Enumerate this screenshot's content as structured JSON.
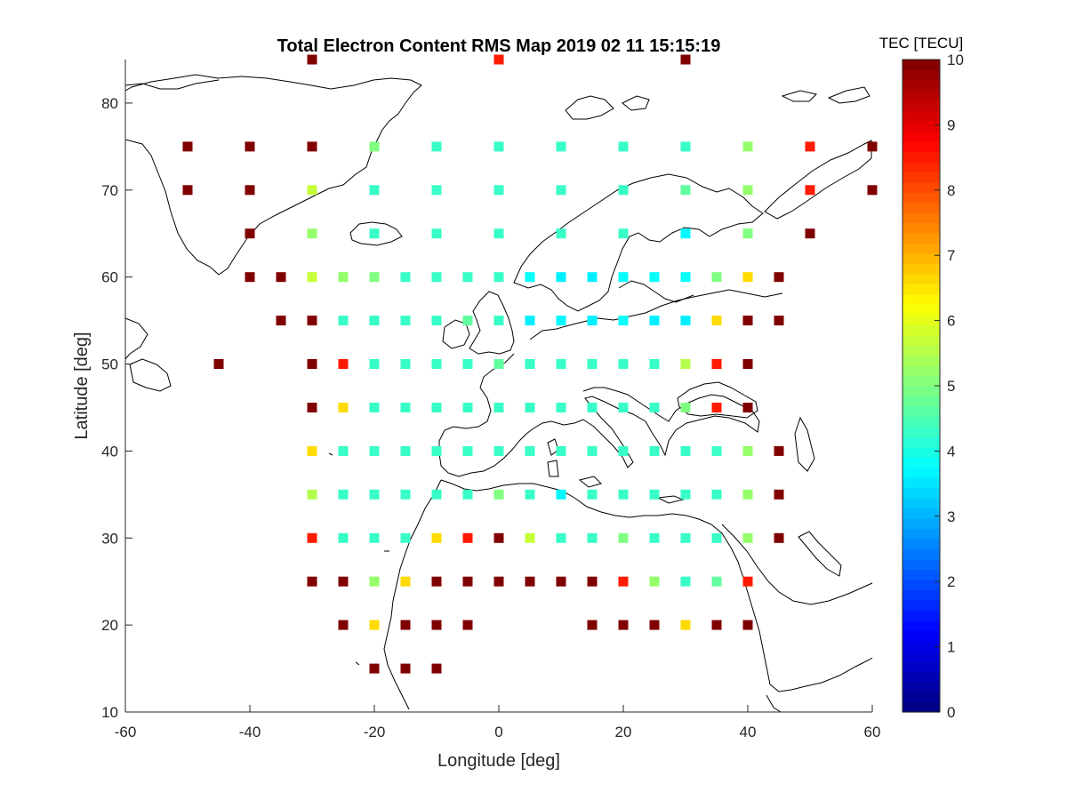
{
  "chart_data": {
    "type": "heatmap",
    "title": "Total Electron Content RMS Map 2019 02 11 15:15:19",
    "xlabel": "Longitude [deg]",
    "ylabel": "Latitude [deg]",
    "xlim": [
      -60,
      60
    ],
    "ylim": [
      10,
      85
    ],
    "xticks": [
      "-60",
      "-40",
      "-20",
      "0",
      "20",
      "40",
      "60"
    ],
    "yticks": [
      "10",
      "20",
      "30",
      "40",
      "50",
      "60",
      "70",
      "80"
    ],
    "colorbar": {
      "title": "TEC [TECU]",
      "range": [
        0,
        10
      ],
      "ticks": [
        "0",
        "1",
        "2",
        "3",
        "4",
        "5",
        "6",
        "7",
        "8",
        "9",
        "10"
      ],
      "colormap": "jet"
    },
    "marker": "square",
    "grid": false,
    "background_map": "coastlines",
    "points": [
      {
        "lon": -30,
        "lat": 85,
        "value": 10
      },
      {
        "lon": 0,
        "lat": 85,
        "value": 8.5
      },
      {
        "lon": 30,
        "lat": 85,
        "value": 10
      },
      {
        "lon": -50,
        "lat": 75,
        "value": 10
      },
      {
        "lon": -40,
        "lat": 75,
        "value": 10
      },
      {
        "lon": -30,
        "lat": 75,
        "value": 10
      },
      {
        "lon": -20,
        "lat": 75,
        "value": 5
      },
      {
        "lon": -10,
        "lat": 75,
        "value": 4.3
      },
      {
        "lon": 0,
        "lat": 75,
        "value": 4.3
      },
      {
        "lon": 10,
        "lat": 75,
        "value": 4.3
      },
      {
        "lon": 20,
        "lat": 75,
        "value": 4.3
      },
      {
        "lon": 30,
        "lat": 75,
        "value": 4.3
      },
      {
        "lon": 40,
        "lat": 75,
        "value": 5.2
      },
      {
        "lon": 50,
        "lat": 75,
        "value": 8.5
      },
      {
        "lon": 60,
        "lat": 75,
        "value": 10
      },
      {
        "lon": -50,
        "lat": 70,
        "value": 10
      },
      {
        "lon": -40,
        "lat": 70,
        "value": 10
      },
      {
        "lon": -30,
        "lat": 70,
        "value": 5.7
      },
      {
        "lon": -20,
        "lat": 70,
        "value": 4.3
      },
      {
        "lon": -10,
        "lat": 70,
        "value": 4.3
      },
      {
        "lon": 0,
        "lat": 70,
        "value": 4.3
      },
      {
        "lon": 10,
        "lat": 70,
        "value": 4.3
      },
      {
        "lon": 20,
        "lat": 70,
        "value": 4.3
      },
      {
        "lon": 30,
        "lat": 70,
        "value": 4.7
      },
      {
        "lon": 40,
        "lat": 70,
        "value": 5.2
      },
      {
        "lon": 50,
        "lat": 70,
        "value": 8.5
      },
      {
        "lon": 60,
        "lat": 70,
        "value": 10
      },
      {
        "lon": -40,
        "lat": 65,
        "value": 10
      },
      {
        "lon": -30,
        "lat": 65,
        "value": 5.2
      },
      {
        "lon": -20,
        "lat": 65,
        "value": 4.3
      },
      {
        "lon": -10,
        "lat": 65,
        "value": 4.3
      },
      {
        "lon": 0,
        "lat": 65,
        "value": 4.3
      },
      {
        "lon": 10,
        "lat": 65,
        "value": 4.3
      },
      {
        "lon": 20,
        "lat": 65,
        "value": 4.3
      },
      {
        "lon": 30,
        "lat": 65,
        "value": 3.7
      },
      {
        "lon": 40,
        "lat": 65,
        "value": 5
      },
      {
        "lon": 50,
        "lat": 65,
        "value": 10
      },
      {
        "lon": -40,
        "lat": 60,
        "value": 10
      },
      {
        "lon": -35,
        "lat": 60,
        "value": 10
      },
      {
        "lon": -30,
        "lat": 60,
        "value": 5.7
      },
      {
        "lon": -25,
        "lat": 60,
        "value": 5.2
      },
      {
        "lon": -20,
        "lat": 60,
        "value": 5
      },
      {
        "lon": -15,
        "lat": 60,
        "value": 4.3
      },
      {
        "lon": -10,
        "lat": 60,
        "value": 4.3
      },
      {
        "lon": -5,
        "lat": 60,
        "value": 4.3
      },
      {
        "lon": 0,
        "lat": 60,
        "value": 4.3
      },
      {
        "lon": 5,
        "lat": 60,
        "value": 3.8
      },
      {
        "lon": 10,
        "lat": 60,
        "value": 3.6
      },
      {
        "lon": 15,
        "lat": 60,
        "value": 3.6
      },
      {
        "lon": 20,
        "lat": 60,
        "value": 3.8
      },
      {
        "lon": 25,
        "lat": 60,
        "value": 3.8
      },
      {
        "lon": 30,
        "lat": 60,
        "value": 3.8
      },
      {
        "lon": 35,
        "lat": 60,
        "value": 5
      },
      {
        "lon": 40,
        "lat": 60,
        "value": 6.6
      },
      {
        "lon": 45,
        "lat": 60,
        "value": 10
      },
      {
        "lon": -35,
        "lat": 55,
        "value": 10
      },
      {
        "lon": -30,
        "lat": 55,
        "value": 10
      },
      {
        "lon": -25,
        "lat": 55,
        "value": 4.3
      },
      {
        "lon": -20,
        "lat": 55,
        "value": 4.3
      },
      {
        "lon": -15,
        "lat": 55,
        "value": 4.3
      },
      {
        "lon": -10,
        "lat": 55,
        "value": 4.3
      },
      {
        "lon": -5,
        "lat": 55,
        "value": 4.7
      },
      {
        "lon": 0,
        "lat": 55,
        "value": 4.3
      },
      {
        "lon": 5,
        "lat": 55,
        "value": 3.6
      },
      {
        "lon": 10,
        "lat": 55,
        "value": 3.7
      },
      {
        "lon": 15,
        "lat": 55,
        "value": 3.6
      },
      {
        "lon": 20,
        "lat": 55,
        "value": 3.8
      },
      {
        "lon": 25,
        "lat": 55,
        "value": 3.6
      },
      {
        "lon": 30,
        "lat": 55,
        "value": 3.6
      },
      {
        "lon": 35,
        "lat": 55,
        "value": 6.6
      },
      {
        "lon": 40,
        "lat": 55,
        "value": 10
      },
      {
        "lon": 45,
        "lat": 55,
        "value": 10
      },
      {
        "lon": -45,
        "lat": 50,
        "value": 10
      },
      {
        "lon": -30,
        "lat": 50,
        "value": 10
      },
      {
        "lon": -25,
        "lat": 50,
        "value": 8.5
      },
      {
        "lon": -20,
        "lat": 50,
        "value": 4.3
      },
      {
        "lon": -15,
        "lat": 50,
        "value": 4.3
      },
      {
        "lon": -10,
        "lat": 50,
        "value": 4.3
      },
      {
        "lon": -5,
        "lat": 50,
        "value": 4.3
      },
      {
        "lon": 0,
        "lat": 50,
        "value": 4.7
      },
      {
        "lon": 5,
        "lat": 50,
        "value": 4.3
      },
      {
        "lon": 10,
        "lat": 50,
        "value": 4.3
      },
      {
        "lon": 15,
        "lat": 50,
        "value": 4.3
      },
      {
        "lon": 20,
        "lat": 50,
        "value": 4.3
      },
      {
        "lon": 25,
        "lat": 50,
        "value": 4.3
      },
      {
        "lon": 30,
        "lat": 50,
        "value": 5.5
      },
      {
        "lon": 35,
        "lat": 50,
        "value": 8.5
      },
      {
        "lon": 40,
        "lat": 50,
        "value": 10
      },
      {
        "lon": -30,
        "lat": 45,
        "value": 10
      },
      {
        "lon": -25,
        "lat": 45,
        "value": 6.6
      },
      {
        "lon": -20,
        "lat": 45,
        "value": 4.3
      },
      {
        "lon": -15,
        "lat": 45,
        "value": 4.3
      },
      {
        "lon": -10,
        "lat": 45,
        "value": 4.3
      },
      {
        "lon": -5,
        "lat": 45,
        "value": 4.3
      },
      {
        "lon": 0,
        "lat": 45,
        "value": 4.3
      },
      {
        "lon": 5,
        "lat": 45,
        "value": 4.3
      },
      {
        "lon": 10,
        "lat": 45,
        "value": 4.3
      },
      {
        "lon": 15,
        "lat": 45,
        "value": 4.3
      },
      {
        "lon": 20,
        "lat": 45,
        "value": 4.3
      },
      {
        "lon": 25,
        "lat": 45,
        "value": 4.3
      },
      {
        "lon": 30,
        "lat": 45,
        "value": 5
      },
      {
        "lon": 35,
        "lat": 45,
        "value": 8.5
      },
      {
        "lon": 40,
        "lat": 45,
        "value": 10
      },
      {
        "lon": -30,
        "lat": 40,
        "value": 6.6
      },
      {
        "lon": -25,
        "lat": 40,
        "value": 4.3
      },
      {
        "lon": -20,
        "lat": 40,
        "value": 4.3
      },
      {
        "lon": -15,
        "lat": 40,
        "value": 4.3
      },
      {
        "lon": -10,
        "lat": 40,
        "value": 4.3
      },
      {
        "lon": -5,
        "lat": 40,
        "value": 4.3
      },
      {
        "lon": 0,
        "lat": 40,
        "value": 4.3
      },
      {
        "lon": 5,
        "lat": 40,
        "value": 4.3
      },
      {
        "lon": 10,
        "lat": 40,
        "value": 4.3
      },
      {
        "lon": 15,
        "lat": 40,
        "value": 4.3
      },
      {
        "lon": 20,
        "lat": 40,
        "value": 4.3
      },
      {
        "lon": 25,
        "lat": 40,
        "value": 4.3
      },
      {
        "lon": 30,
        "lat": 40,
        "value": 4.3
      },
      {
        "lon": 35,
        "lat": 40,
        "value": 4.3
      },
      {
        "lon": 40,
        "lat": 40,
        "value": 5.2
      },
      {
        "lon": 45,
        "lat": 40,
        "value": 10
      },
      {
        "lon": -30,
        "lat": 35,
        "value": 5.5
      },
      {
        "lon": -25,
        "lat": 35,
        "value": 4.3
      },
      {
        "lon": -20,
        "lat": 35,
        "value": 4.3
      },
      {
        "lon": -15,
        "lat": 35,
        "value": 4.3
      },
      {
        "lon": -10,
        "lat": 35,
        "value": 4.3
      },
      {
        "lon": -5,
        "lat": 35,
        "value": 4.3
      },
      {
        "lon": 0,
        "lat": 35,
        "value": 5
      },
      {
        "lon": 5,
        "lat": 35,
        "value": 4.3
      },
      {
        "lon": 10,
        "lat": 35,
        "value": 3.7
      },
      {
        "lon": 15,
        "lat": 35,
        "value": 4.3
      },
      {
        "lon": 20,
        "lat": 35,
        "value": 4.3
      },
      {
        "lon": 25,
        "lat": 35,
        "value": 4.3
      },
      {
        "lon": 30,
        "lat": 35,
        "value": 4.3
      },
      {
        "lon": 35,
        "lat": 35,
        "value": 4.3
      },
      {
        "lon": 40,
        "lat": 35,
        "value": 5.2
      },
      {
        "lon": 45,
        "lat": 35,
        "value": 10
      },
      {
        "lon": -30,
        "lat": 30,
        "value": 8.5
      },
      {
        "lon": -25,
        "lat": 30,
        "value": 4.3
      },
      {
        "lon": -20,
        "lat": 30,
        "value": 4.3
      },
      {
        "lon": -15,
        "lat": 30,
        "value": 4.3
      },
      {
        "lon": -10,
        "lat": 30,
        "value": 6.6
      },
      {
        "lon": -5,
        "lat": 30,
        "value": 8.5
      },
      {
        "lon": 0,
        "lat": 30,
        "value": 10
      },
      {
        "lon": 5,
        "lat": 30,
        "value": 5.7
      },
      {
        "lon": 10,
        "lat": 30,
        "value": 4.3
      },
      {
        "lon": 15,
        "lat": 30,
        "value": 4.3
      },
      {
        "lon": 20,
        "lat": 30,
        "value": 5
      },
      {
        "lon": 25,
        "lat": 30,
        "value": 4.3
      },
      {
        "lon": 30,
        "lat": 30,
        "value": 4.3
      },
      {
        "lon": 35,
        "lat": 30,
        "value": 4.3
      },
      {
        "lon": 40,
        "lat": 30,
        "value": 5.2
      },
      {
        "lon": 45,
        "lat": 30,
        "value": 10
      },
      {
        "lon": -30,
        "lat": 25,
        "value": 10
      },
      {
        "lon": -25,
        "lat": 25,
        "value": 10
      },
      {
        "lon": -20,
        "lat": 25,
        "value": 5.2
      },
      {
        "lon": -15,
        "lat": 25,
        "value": 6.6
      },
      {
        "lon": -10,
        "lat": 25,
        "value": 10
      },
      {
        "lon": -5,
        "lat": 25,
        "value": 10
      },
      {
        "lon": 0,
        "lat": 25,
        "value": 10
      },
      {
        "lon": 5,
        "lat": 25,
        "value": 10
      },
      {
        "lon": 10,
        "lat": 25,
        "value": 10
      },
      {
        "lon": 15,
        "lat": 25,
        "value": 10
      },
      {
        "lon": 20,
        "lat": 25,
        "value": 8.5
      },
      {
        "lon": 25,
        "lat": 25,
        "value": 5.2
      },
      {
        "lon": 30,
        "lat": 25,
        "value": 4.3
      },
      {
        "lon": 35,
        "lat": 25,
        "value": 4.7
      },
      {
        "lon": 40,
        "lat": 25,
        "value": 8.5
      },
      {
        "lon": -25,
        "lat": 20,
        "value": 10
      },
      {
        "lon": -20,
        "lat": 20,
        "value": 6.6
      },
      {
        "lon": -15,
        "lat": 20,
        "value": 10
      },
      {
        "lon": -10,
        "lat": 20,
        "value": 10
      },
      {
        "lon": -5,
        "lat": 20,
        "value": 10
      },
      {
        "lon": 15,
        "lat": 20,
        "value": 10
      },
      {
        "lon": 20,
        "lat": 20,
        "value": 10
      },
      {
        "lon": 25,
        "lat": 20,
        "value": 10
      },
      {
        "lon": 30,
        "lat": 20,
        "value": 6.6
      },
      {
        "lon": 35,
        "lat": 20,
        "value": 10
      },
      {
        "lon": 40,
        "lat": 20,
        "value": 10
      },
      {
        "lon": -20,
        "lat": 15,
        "value": 10
      },
      {
        "lon": -15,
        "lat": 15,
        "value": 10
      },
      {
        "lon": -10,
        "lat": 15,
        "value": 10
      }
    ]
  }
}
